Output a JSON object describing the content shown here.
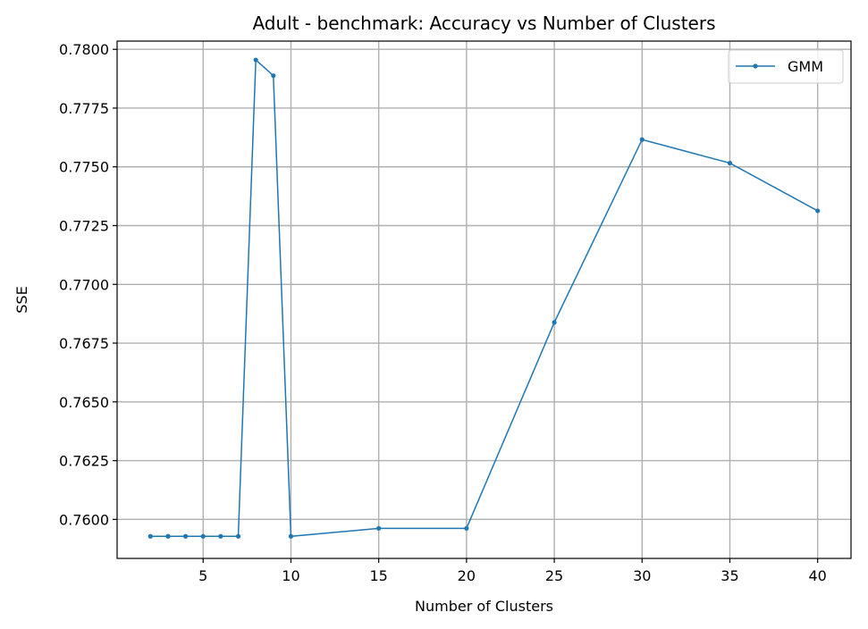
{
  "chart_data": {
    "type": "line",
    "title": "Adult - benchmark: Accuracy vs Number of Clusters",
    "xlabel": "Number of Clusters",
    "ylabel": "SSE",
    "xlim": [
      0.1,
      41.9
    ],
    "ylim": [
      0.75834,
      0.78035
    ],
    "xticks": [
      5,
      10,
      15,
      20,
      25,
      30,
      35,
      40
    ],
    "yticks": [
      0.76,
      0.7625,
      0.765,
      0.7675,
      0.77,
      0.7725,
      0.775,
      0.7775,
      0.78
    ],
    "ytick_labels": [
      "0.7600",
      "0.7625",
      "0.7650",
      "0.7675",
      "0.7700",
      "0.7725",
      "0.7750",
      "0.7775",
      "0.7800"
    ],
    "grid": true,
    "legend_position": "top-right",
    "series": [
      {
        "name": "GMM",
        "color": "#1f77b4",
        "x": [
          2,
          3,
          4,
          5,
          6,
          7,
          8,
          9,
          10,
          15,
          20,
          25,
          30,
          35,
          40
        ],
        "y": [
          0.75928,
          0.75928,
          0.75928,
          0.75928,
          0.75928,
          0.75928,
          0.77955,
          0.77888,
          0.75928,
          0.75962,
          0.75962,
          0.76838,
          0.77616,
          0.77516,
          0.77313
        ]
      }
    ]
  }
}
